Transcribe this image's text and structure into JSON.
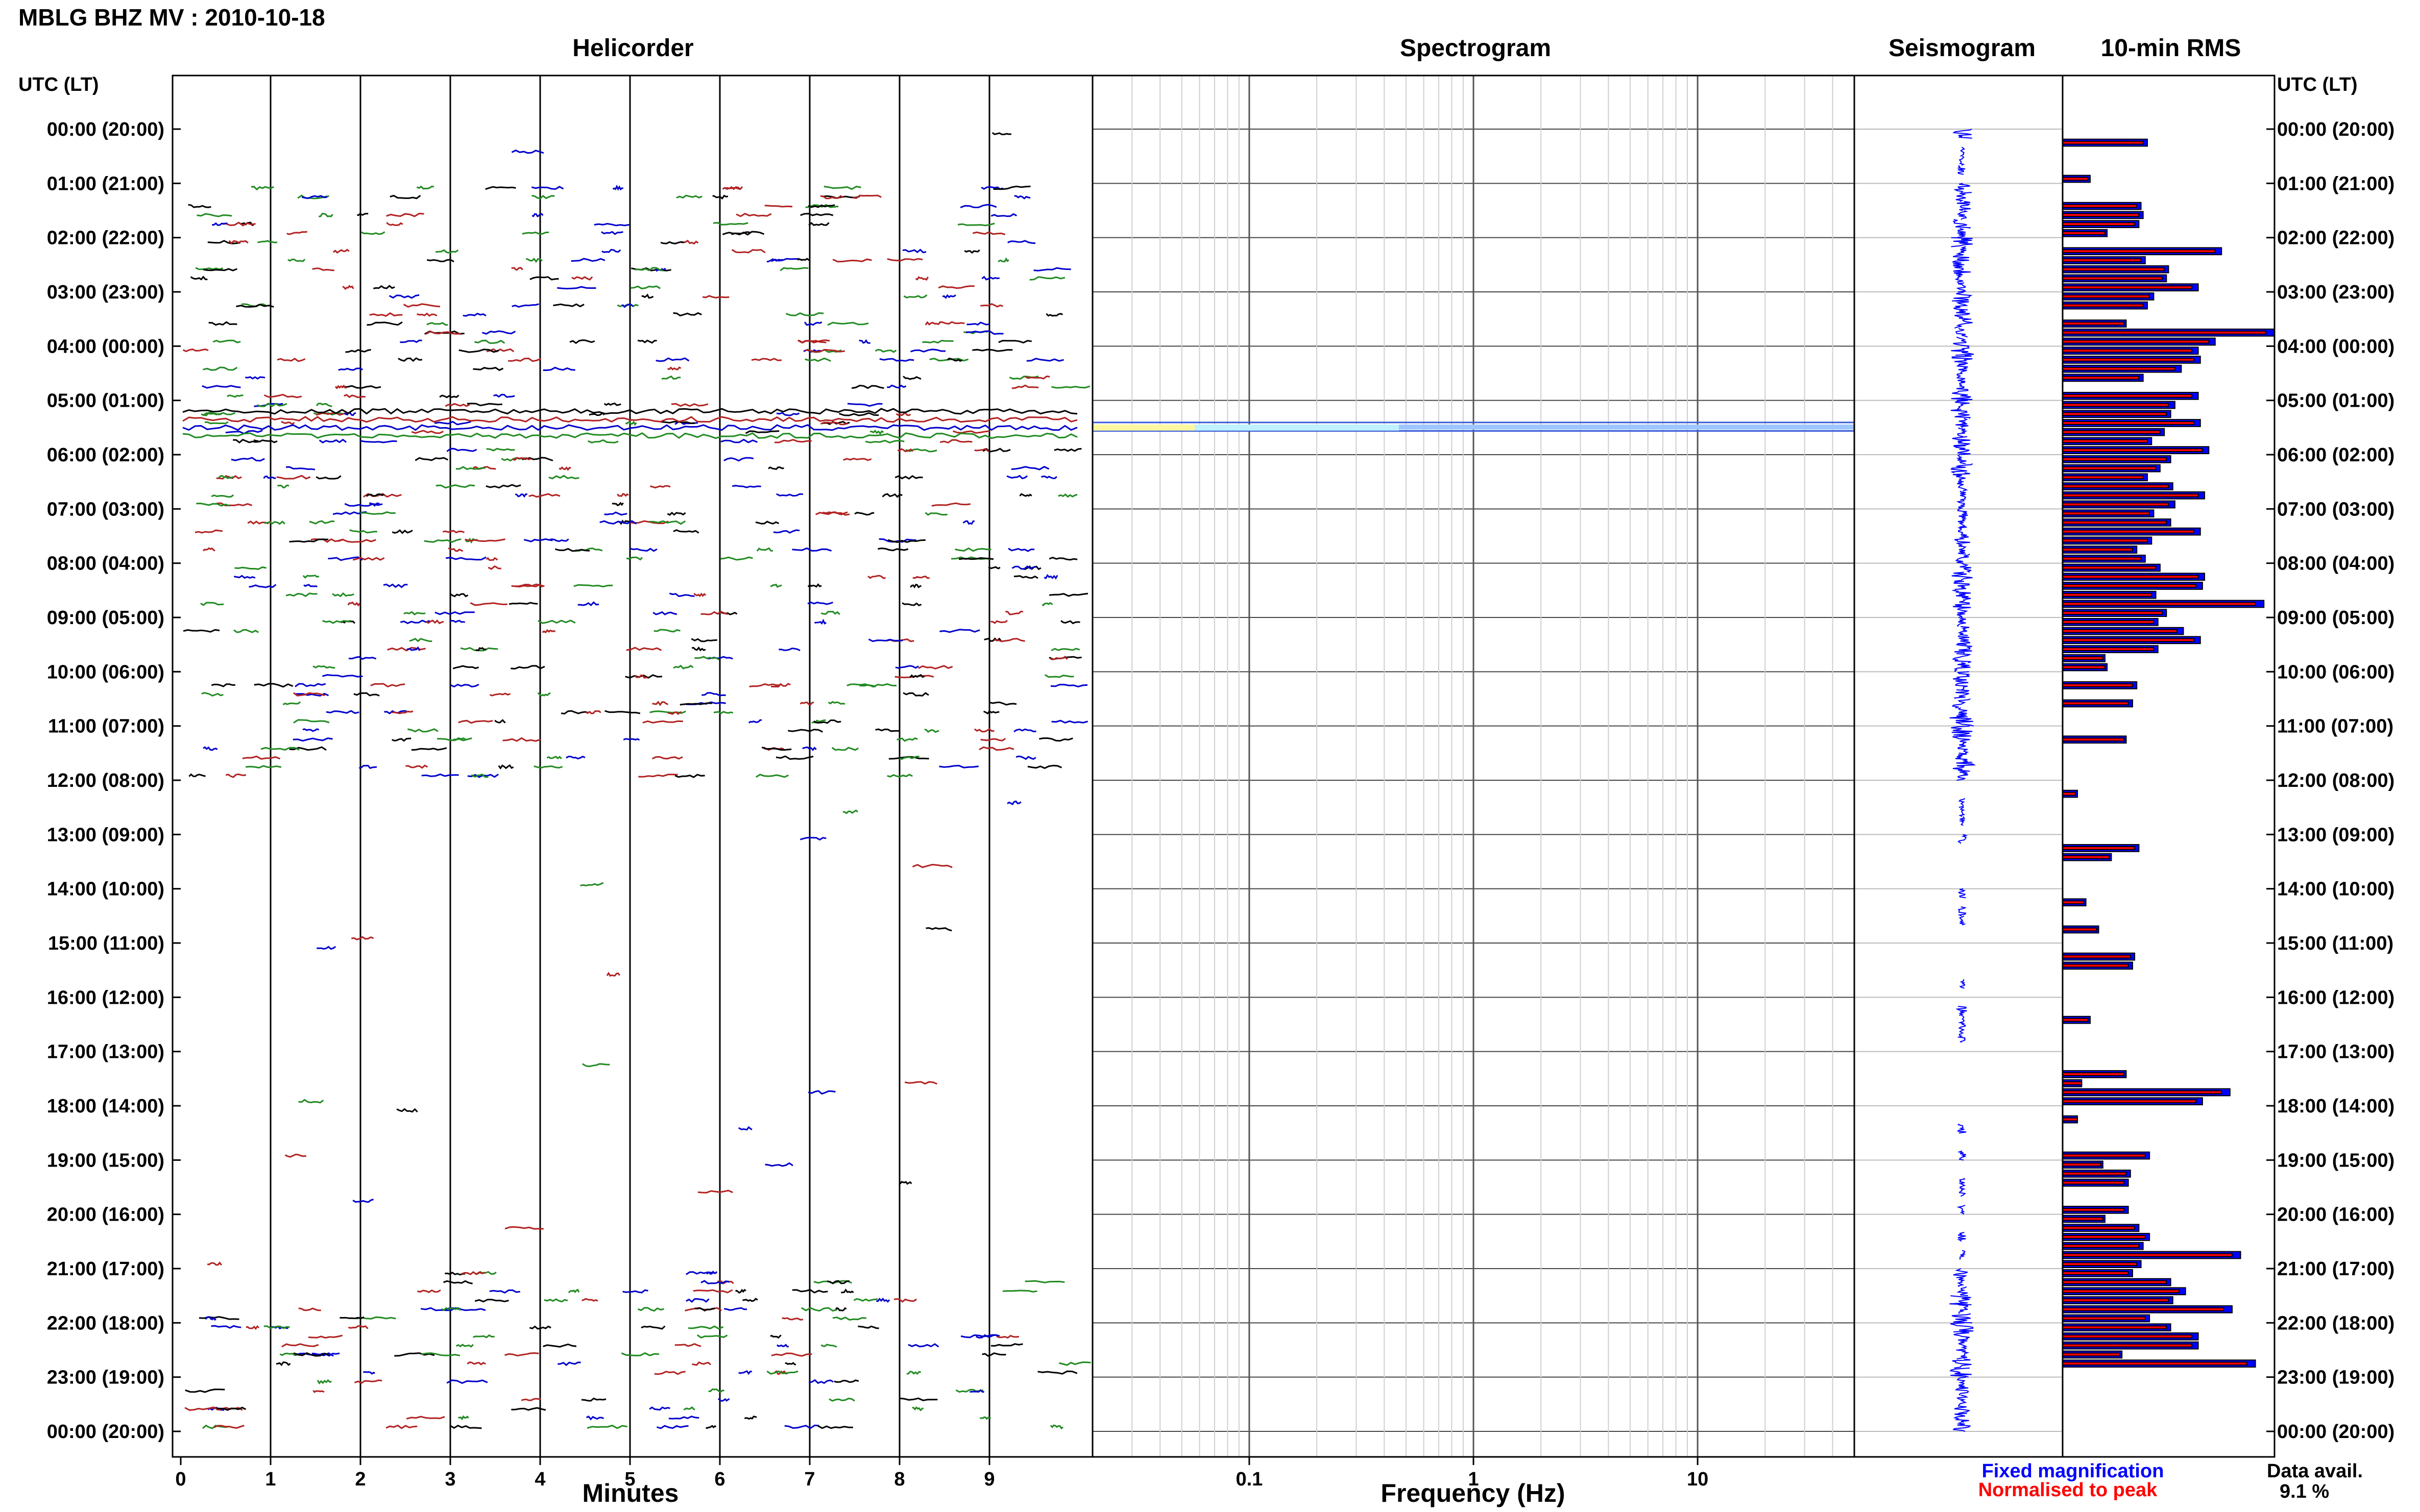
{
  "title": "MBLG BHZ MV : 2010-10-18",
  "panels": {
    "helicorder": "Helicorder",
    "spectrogram": "Spectrogram",
    "seismogram": "Seismogram",
    "rms": "10-min RMS"
  },
  "time_axis": {
    "header_left": "UTC (LT)",
    "header_right": "UTC (LT)",
    "labels": [
      "00:00 (20:00)",
      "01:00 (21:00)",
      "02:00 (22:00)",
      "03:00 (23:00)",
      "04:00 (00:00)",
      "05:00 (01:00)",
      "06:00 (02:00)",
      "07:00 (03:00)",
      "08:00 (04:00)",
      "09:00 (05:00)",
      "10:00 (06:00)",
      "11:00 (07:00)",
      "12:00 (08:00)",
      "13:00 (09:00)",
      "14:00 (10:00)",
      "15:00 (11:00)",
      "16:00 (12:00)",
      "17:00 (13:00)",
      "18:00 (14:00)",
      "19:00 (15:00)",
      "20:00 (16:00)",
      "21:00 (17:00)",
      "22:00 (18:00)",
      "23:00 (19:00)",
      "00:00 (20:00)"
    ]
  },
  "minutes_axis": {
    "label": "Minutes",
    "ticks": [
      "0",
      "1",
      "2",
      "3",
      "4",
      "5",
      "6",
      "7",
      "8",
      "9"
    ]
  },
  "frequency_axis": {
    "label": "Frequency (Hz)",
    "ticks": [
      "0.1",
      "1",
      "10"
    ]
  },
  "legend": {
    "fixed": "Fixed magnification",
    "normalised": "Normalised to peak"
  },
  "data_availability": {
    "label": "Data avail.",
    "value": "9.1 %"
  },
  "colors": {
    "blue": "#0000ff",
    "red": "#ff0000",
    "green": "#008000",
    "darkred": "#8b0000",
    "black": "#000000"
  },
  "chart_data": [
    {
      "type": "line",
      "name": "helicorder",
      "x_range_minutes": [
        0,
        10
      ],
      "rows_per_hour": 6,
      "trace_colors": [
        "#000000",
        "#b22222",
        "#0000cd",
        "#228b22"
      ],
      "active_hour_ranges": [
        [
          1,
          12
        ],
        [
          21,
          24
        ]
      ],
      "sparse_hours": [
        12,
        13,
        14,
        15,
        16,
        17,
        18,
        19,
        20
      ]
    },
    {
      "type": "heatmap",
      "name": "spectrogram",
      "xscale": "log",
      "x_range_hz": [
        0.02,
        50
      ],
      "highlight_band_hours": [
        5.35,
        5.6
      ]
    },
    {
      "type": "bar",
      "name": "10-min RMS",
      "categories_hours": [
        0,
        0.1667,
        0.3333,
        0.5,
        0.6667,
        0.8333,
        1,
        1.1667,
        1.3333,
        1.5,
        1.6667,
        1.8333,
        2,
        2.1667,
        2.3333,
        2.5,
        2.6667,
        2.8333,
        3,
        3.1667,
        3.3333,
        3.5,
        3.6667,
        3.8333,
        4,
        4.1667,
        4.3333,
        4.5,
        4.6667,
        4.8333,
        5,
        5.1667,
        5.3333,
        5.5,
        5.6667,
        5.8333,
        6,
        6.1667,
        6.3333,
        6.5,
        6.6667,
        6.8333,
        7,
        7.1667,
        7.3333,
        7.5,
        7.6667,
        7.8333,
        8,
        8.1667,
        8.3333,
        8.5,
        8.6667,
        8.8333,
        9,
        9.1667,
        9.3333,
        9.5,
        9.6667,
        9.8333,
        10,
        10.1667,
        10.3333,
        10.5,
        10.6667,
        10.8333,
        11,
        11.1667,
        11.3333,
        11.5,
        11.6667,
        11.8333,
        12,
        12.1667,
        12.3333,
        12.5,
        12.6667,
        12.8333,
        13,
        13.1667,
        13.3333,
        13.5,
        13.6667,
        13.8333,
        14,
        14.1667,
        14.3333,
        14.5,
        14.6667,
        14.8333,
        15,
        15.1667,
        15.3333,
        15.5,
        15.6667,
        15.8333,
        16,
        16.1667,
        16.3333,
        16.5,
        16.6667,
        16.8333,
        17,
        17.1667,
        17.3333,
        17.5,
        17.6667,
        17.8333,
        18,
        18.1667,
        18.3333,
        18.5,
        18.6667,
        18.8333,
        19,
        19.1667,
        19.3333,
        19.5,
        19.6667,
        19.8333,
        20,
        20.1667,
        20.3333,
        20.5,
        20.6667,
        20.8333,
        21,
        21.1667,
        21.3333,
        21.5,
        21.6667,
        21.8333,
        22,
        22.1667,
        22.3333,
        22.5,
        22.6667,
        22.8333,
        23,
        23.1667,
        23.3333,
        23.5,
        23.6667,
        23.8333
      ],
      "series": [
        {
          "name": "Fixed magnification",
          "color": "#0000ff",
          "values": [
            0,
            0.4,
            0,
            0,
            0,
            0.13,
            0,
            0,
            0.37,
            0.38,
            0.36,
            0.21,
            0,
            0.75,
            0.39,
            0.5,
            0.49,
            0.64,
            0.43,
            0.4,
            0,
            0.3,
            1.0,
            0.72,
            0.64,
            0.65,
            0.56,
            0.38,
            0,
            0.64,
            0.53,
            0.51,
            0.65,
            0.48,
            0.42,
            0.69,
            0.51,
            0.46,
            0.4,
            0.52,
            0.67,
            0.53,
            0.43,
            0.51,
            0.65,
            0.42,
            0.35,
            0.39,
            0.46,
            0.67,
            0.66,
            0.44,
            0.95,
            0.49,
            0.45,
            0.57,
            0.65,
            0.45,
            0.2,
            0.21,
            0,
            0.35,
            0,
            0.33,
            0,
            0,
            0,
            0.3,
            0,
            0,
            0,
            0,
            0,
            0.07,
            0,
            0,
            0,
            0,
            0,
            0.36,
            0.23,
            0,
            0,
            0,
            0,
            0.11,
            0,
            0,
            0.17,
            0,
            0,
            0.34,
            0.33,
            0,
            0,
            0,
            0,
            0,
            0.13,
            0,
            0,
            0,
            0,
            0,
            0.3,
            0.09,
            0.79,
            0.66,
            0,
            0.07,
            0,
            0,
            0,
            0.41,
            0.19,
            0.32,
            0.31,
            0,
            0,
            0.31,
            0.2,
            0.36,
            0.41,
            0.38,
            0.84,
            0.37,
            0.33,
            0.51,
            0.58,
            0.52,
            0.8,
            0.41,
            0.51,
            0.64,
            0.64,
            0.28,
            0.91,
            0
          ]
        },
        {
          "name": "Normalised to peak",
          "color": "#ff0000",
          "values": [
            0,
            0.38,
            0,
            0,
            0,
            0.12,
            0,
            0,
            0.35,
            0.36,
            0.34,
            0.2,
            0,
            0.72,
            0.37,
            0.48,
            0.47,
            0.61,
            0.41,
            0.38,
            0,
            0.29,
            0.96,
            0.69,
            0.61,
            0.62,
            0.53,
            0.36,
            0,
            0.61,
            0.5,
            0.49,
            0.62,
            0.46,
            0.4,
            0.66,
            0.49,
            0.44,
            0.38,
            0.5,
            0.64,
            0.5,
            0.41,
            0.49,
            0.62,
            0.4,
            0.33,
            0.37,
            0.44,
            0.64,
            0.63,
            0.42,
            0.91,
            0.47,
            0.43,
            0.54,
            0.62,
            0.43,
            0.19,
            0.2,
            0,
            0.33,
            0,
            0.31,
            0,
            0,
            0,
            0.29,
            0,
            0,
            0,
            0,
            0,
            0.06,
            0,
            0,
            0,
            0,
            0,
            0.34,
            0.22,
            0,
            0,
            0,
            0,
            0.1,
            0,
            0,
            0.16,
            0,
            0,
            0.32,
            0.31,
            0,
            0,
            0,
            0,
            0,
            0.12,
            0,
            0,
            0,
            0,
            0,
            0.29,
            0.09,
            0.75,
            0.63,
            0,
            0.07,
            0,
            0,
            0,
            0.39,
            0.18,
            0.3,
            0.29,
            0,
            0,
            0.29,
            0.19,
            0.34,
            0.39,
            0.36,
            0.8,
            0.35,
            0.31,
            0.49,
            0.55,
            0.5,
            0.76,
            0.39,
            0.49,
            0.61,
            0.61,
            0.27,
            0.87,
            0
          ]
        }
      ]
    }
  ]
}
